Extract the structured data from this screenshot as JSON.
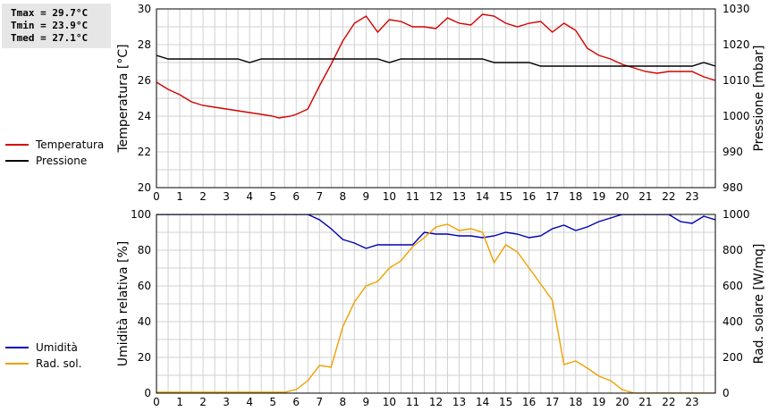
{
  "stats": {
    "tmax": "Tmax = 29.7°C",
    "tmin": "Tmin = 23.9°C",
    "tmed": "Tmed = 27.1°C"
  },
  "colors": {
    "temperature": "#d40000",
    "pressure": "#000000",
    "humidity": "#0000b4",
    "radiation": "#f0a000",
    "grid": "#d0d0d0"
  },
  "chart_data": [
    {
      "type": "line",
      "xlim": [
        0,
        24
      ],
      "x_ticks": [
        0,
        1,
        2,
        3,
        4,
        5,
        6,
        7,
        8,
        9,
        10,
        11,
        12,
        13,
        14,
        15,
        16,
        17,
        18,
        19,
        20,
        21,
        22,
        23
      ],
      "ylabel": "Temperatura [°C]",
      "ylim": [
        20,
        30
      ],
      "y_ticks": [
        20,
        22,
        24,
        26,
        28,
        30
      ],
      "y2label": "Pressione [mbar]",
      "y2lim": [
        980,
        1030
      ],
      "y2_ticks": [
        980,
        990,
        1000,
        1010,
        1020,
        1030
      ],
      "grid": true,
      "legend_position": "left",
      "series": [
        {
          "name": "Temperatura",
          "axis": "left",
          "color_key": "temperature",
          "points": [
            [
              0,
              25.9
            ],
            [
              0.5,
              25.5
            ],
            [
              1,
              25.2
            ],
            [
              1.5,
              24.8
            ],
            [
              2,
              24.6
            ],
            [
              2.5,
              24.5
            ],
            [
              3,
              24.4
            ],
            [
              3.5,
              24.3
            ],
            [
              4,
              24.2
            ],
            [
              4.5,
              24.1
            ],
            [
              5,
              24.0
            ],
            [
              5.25,
              23.9
            ],
            [
              5.75,
              24.0
            ],
            [
              6,
              24.1
            ],
            [
              6.5,
              24.4
            ],
            [
              7,
              25.7
            ],
            [
              7.5,
              26.9
            ],
            [
              8,
              28.2
            ],
            [
              8.5,
              29.2
            ],
            [
              9,
              29.6
            ],
            [
              9.5,
              28.7
            ],
            [
              10,
              29.4
            ],
            [
              10.5,
              29.3
            ],
            [
              11,
              29.0
            ],
            [
              11.5,
              29.0
            ],
            [
              12,
              28.9
            ],
            [
              12.5,
              29.5
            ],
            [
              13,
              29.2
            ],
            [
              13.5,
              29.1
            ],
            [
              14,
              29.7
            ],
            [
              14.5,
              29.6
            ],
            [
              15,
              29.2
            ],
            [
              15.5,
              29.0
            ],
            [
              16,
              29.2
            ],
            [
              16.5,
              29.3
            ],
            [
              17,
              28.7
            ],
            [
              17.5,
              29.2
            ],
            [
              18,
              28.8
            ],
            [
              18.5,
              27.8
            ],
            [
              19,
              27.4
            ],
            [
              19.5,
              27.2
            ],
            [
              20,
              26.9
            ],
            [
              20.5,
              26.7
            ],
            [
              21,
              26.5
            ],
            [
              21.5,
              26.4
            ],
            [
              22,
              26.5
            ],
            [
              22.5,
              26.5
            ],
            [
              23,
              26.5
            ],
            [
              23.5,
              26.2
            ],
            [
              24,
              26.0
            ]
          ]
        },
        {
          "name": "Pressione",
          "axis": "right",
          "color_key": "pressure",
          "points": [
            [
              0,
              1017
            ],
            [
              0.5,
              1016
            ],
            [
              1,
              1016
            ],
            [
              1.5,
              1016
            ],
            [
              2,
              1016
            ],
            [
              2.5,
              1016
            ],
            [
              3,
              1016
            ],
            [
              3.5,
              1016
            ],
            [
              4,
              1015
            ],
            [
              4.5,
              1016
            ],
            [
              5,
              1016
            ],
            [
              5.5,
              1016
            ],
            [
              6,
              1016
            ],
            [
              6.5,
              1016
            ],
            [
              7,
              1016
            ],
            [
              7.5,
              1016
            ],
            [
              8,
              1016
            ],
            [
              8.5,
              1016
            ],
            [
              9,
              1016
            ],
            [
              9.5,
              1016
            ],
            [
              10,
              1015
            ],
            [
              10.5,
              1016
            ],
            [
              11,
              1016
            ],
            [
              11.5,
              1016
            ],
            [
              12,
              1016
            ],
            [
              12.5,
              1016
            ],
            [
              13,
              1016
            ],
            [
              13.5,
              1016
            ],
            [
              14,
              1016
            ],
            [
              14.5,
              1015
            ],
            [
              15,
              1015
            ],
            [
              15.5,
              1015
            ],
            [
              16,
              1015
            ],
            [
              16.5,
              1014
            ],
            [
              17,
              1014
            ],
            [
              17.5,
              1014
            ],
            [
              18,
              1014
            ],
            [
              18.5,
              1014
            ],
            [
              19,
              1014
            ],
            [
              19.5,
              1014
            ],
            [
              20,
              1014
            ],
            [
              20.5,
              1014
            ],
            [
              21,
              1014
            ],
            [
              21.5,
              1014
            ],
            [
              22,
              1014
            ],
            [
              22.5,
              1014
            ],
            [
              23,
              1014
            ],
            [
              23.5,
              1015
            ],
            [
              24,
              1014
            ]
          ]
        }
      ]
    },
    {
      "type": "line",
      "xlim": [
        0,
        24
      ],
      "x_ticks": [
        0,
        1,
        2,
        3,
        4,
        5,
        6,
        7,
        8,
        9,
        10,
        11,
        12,
        13,
        14,
        15,
        16,
        17,
        18,
        19,
        20,
        21,
        22,
        23
      ],
      "ylabel": "Umidità relativa [%]",
      "ylim": [
        0,
        100
      ],
      "y_ticks": [
        0,
        20,
        40,
        60,
        80,
        100
      ],
      "y2label": "Rad. solare [W/mq]",
      "y2lim": [
        0,
        1000
      ],
      "y2_ticks": [
        0,
        200,
        400,
        600,
        800,
        1000
      ],
      "grid": true,
      "legend_position": "left",
      "series": [
        {
          "name": "Umidità",
          "axis": "left",
          "color_key": "humidity",
          "points": [
            [
              0,
              100
            ],
            [
              1,
              100
            ],
            [
              2,
              100
            ],
            [
              3,
              100
            ],
            [
              4,
              100
            ],
            [
              5,
              100
            ],
            [
              5.5,
              100
            ],
            [
              6,
              100
            ],
            [
              6.5,
              100
            ],
            [
              7,
              97
            ],
            [
              7.5,
              92
            ],
            [
              8,
              86
            ],
            [
              8.5,
              84
            ],
            [
              9,
              81
            ],
            [
              9.5,
              83
            ],
            [
              10,
              83
            ],
            [
              10.5,
              83
            ],
            [
              11,
              83
            ],
            [
              11.5,
              90
            ],
            [
              12,
              89
            ],
            [
              12.5,
              89
            ],
            [
              13,
              88
            ],
            [
              13.5,
              88
            ],
            [
              14,
              87
            ],
            [
              14.5,
              88
            ],
            [
              15,
              90
            ],
            [
              15.5,
              89
            ],
            [
              16,
              87
            ],
            [
              16.5,
              88
            ],
            [
              17,
              92
            ],
            [
              17.5,
              94
            ],
            [
              18,
              91
            ],
            [
              18.5,
              93
            ],
            [
              19,
              96
            ],
            [
              19.5,
              98
            ],
            [
              20,
              100
            ],
            [
              21,
              100
            ],
            [
              21.5,
              100
            ],
            [
              22,
              100
            ],
            [
              22.5,
              96
            ],
            [
              23,
              95
            ],
            [
              23.5,
              99
            ],
            [
              24,
              97
            ],
            [
              24.5,
              94
            ]
          ]
        },
        {
          "name": "Rad. sol.",
          "axis": "right",
          "color_key": "radiation",
          "points": [
            [
              0,
              5
            ],
            [
              1,
              5
            ],
            [
              2,
              5
            ],
            [
              3,
              5
            ],
            [
              4,
              5
            ],
            [
              5,
              5
            ],
            [
              5.5,
              5
            ],
            [
              6,
              20
            ],
            [
              6.5,
              70
            ],
            [
              7,
              155
            ],
            [
              7.5,
              145
            ],
            [
              8,
              370
            ],
            [
              8.5,
              510
            ],
            [
              9,
              600
            ],
            [
              9.5,
              625
            ],
            [
              10,
              700
            ],
            [
              10.5,
              740
            ],
            [
              11,
              820
            ],
            [
              11.5,
              870
            ],
            [
              12,
              930
            ],
            [
              12.5,
              945
            ],
            [
              13,
              910
            ],
            [
              13.5,
              920
            ],
            [
              14,
              900
            ],
            [
              14.5,
              730
            ],
            [
              15,
              830
            ],
            [
              15.5,
              790
            ],
            [
              16,
              700
            ],
            [
              16.5,
              610
            ],
            [
              17,
              520
            ],
            [
              17.5,
              160
            ],
            [
              18,
              180
            ],
            [
              18.5,
              140
            ],
            [
              19,
              95
            ],
            [
              19.5,
              70
            ],
            [
              20,
              20
            ],
            [
              20.5,
              0
            ],
            [
              21,
              0
            ],
            [
              22,
              0
            ],
            [
              23,
              0
            ],
            [
              24,
              0
            ],
            [
              24.5,
              0
            ]
          ]
        }
      ]
    }
  ]
}
